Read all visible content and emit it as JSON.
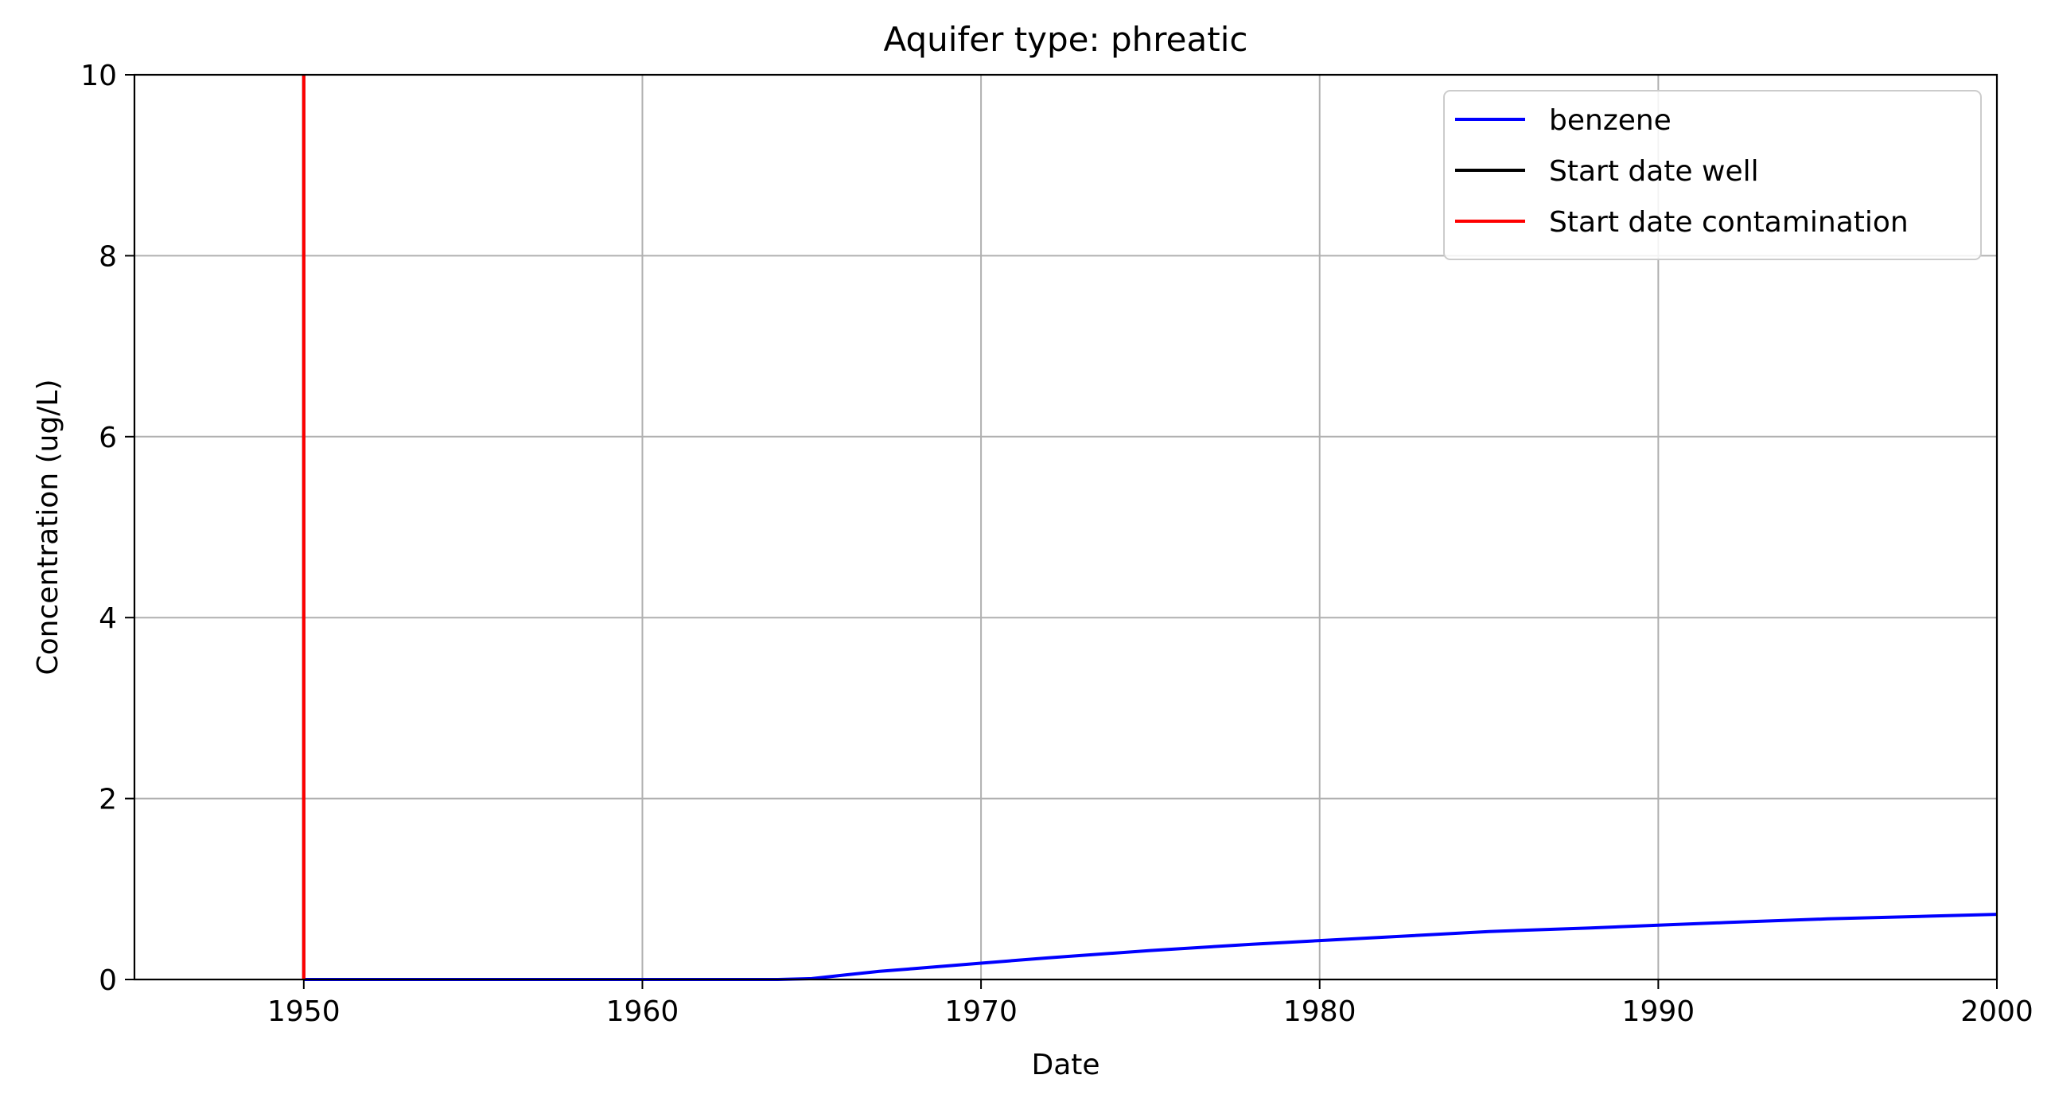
{
  "chart_data": {
    "type": "line",
    "title": "Aquifer type: phreatic",
    "xlabel": "Date",
    "ylabel": "Concentration (ug/L)",
    "xlim": [
      1945,
      2000
    ],
    "ylim": [
      0,
      10
    ],
    "x_ticks": [
      1950,
      1960,
      1970,
      1980,
      1990,
      2000
    ],
    "y_ticks": [
      0,
      2,
      4,
      6,
      8,
      10
    ],
    "grid": true,
    "legend_position": "top-right",
    "series": [
      {
        "name": "benzene",
        "color": "#0000ff",
        "x": [
          1950,
          1955,
          1960,
          1964,
          1965,
          1966,
          1967,
          1968,
          1970,
          1972,
          1975,
          1978,
          1980,
          1982,
          1985,
          1988,
          1990,
          1992,
          1995,
          1998,
          2000
        ],
        "y": [
          0,
          0,
          0,
          0,
          0.01,
          0.05,
          0.09,
          0.12,
          0.18,
          0.24,
          0.32,
          0.39,
          0.43,
          0.47,
          0.53,
          0.57,
          0.6,
          0.63,
          0.67,
          0.7,
          0.72
        ]
      }
    ],
    "vertical_lines": [
      {
        "name": "Start date well",
        "color": "#000000",
        "x": 1950
      },
      {
        "name": "Start date contamination",
        "color": "#ff0000",
        "x": 1950
      }
    ]
  }
}
